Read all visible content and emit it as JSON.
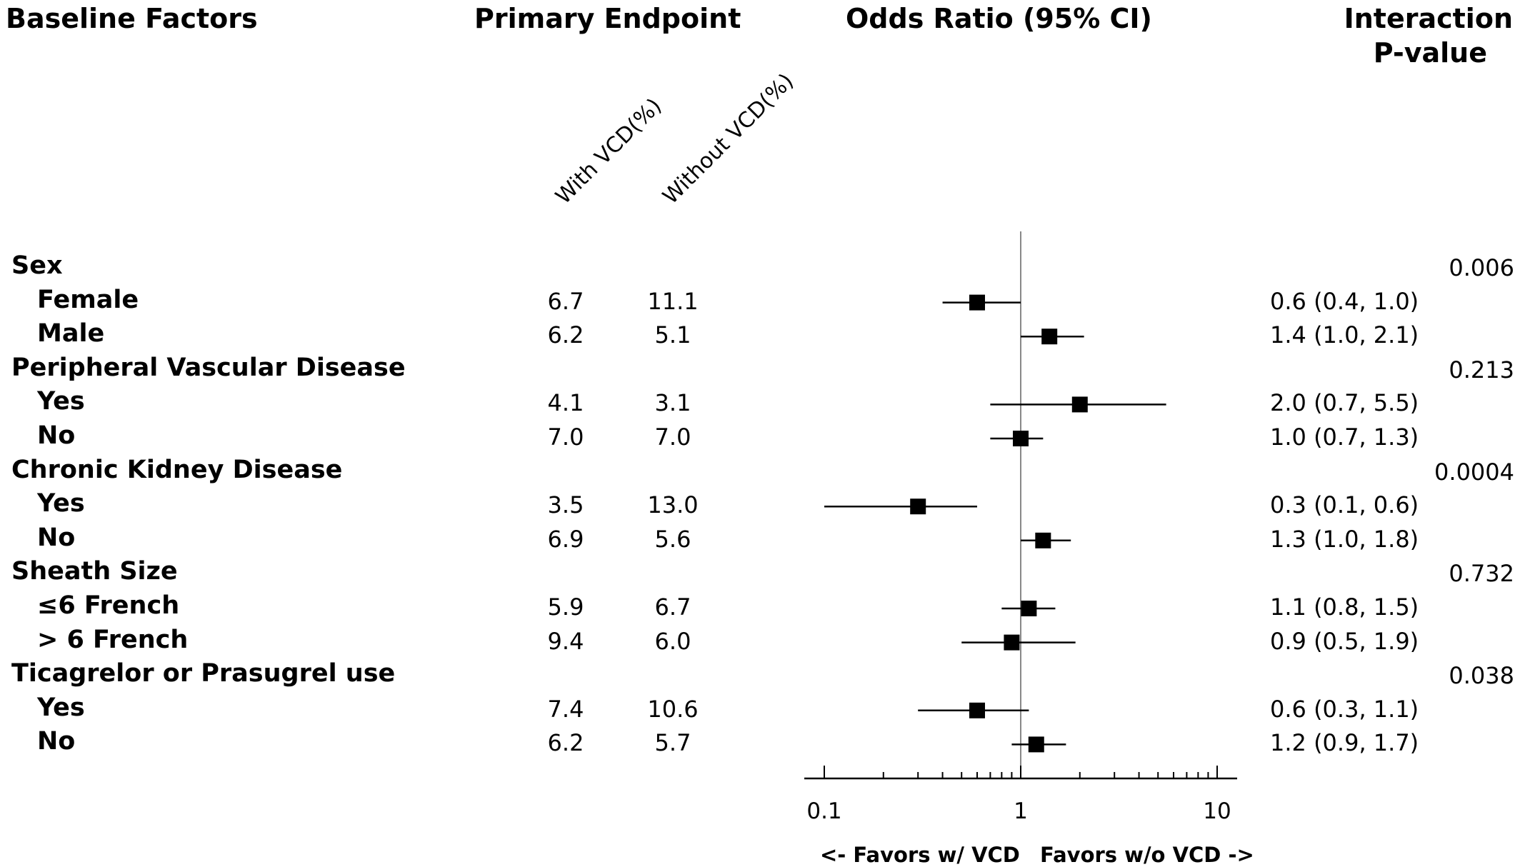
{
  "headers": {
    "baseline": "Baseline Factors",
    "endpoint": "Primary Endpoint",
    "or": "Odds Ratio (95% CI)",
    "interaction_line1": "Interaction",
    "interaction_line2": "P-value",
    "with_vcd": "With VCD(%)",
    "without_vcd": "Without VCD(%)"
  },
  "axis": {
    "favors_left": "<- Favors w/ VCD",
    "favors_right": "Favors w/o VCD ->"
  },
  "chart_data": {
    "type": "forest",
    "xscale": "log",
    "xlim": [
      0.1,
      10
    ],
    "xticks": [
      "0.1",
      "1",
      "10"
    ],
    "reference_line": 1,
    "groups": [
      {
        "label": "Sex",
        "pvalue": "0.006",
        "subgroups": [
          {
            "label": "Female",
            "with": "6.7",
            "without": "11.1",
            "or": 0.6,
            "lo": 0.4,
            "hi": 1.0,
            "ci_text": "0.6 (0.4, 1.0)"
          },
          {
            "label": "Male",
            "with": "6.2",
            "without": "5.1",
            "or": 1.4,
            "lo": 1.0,
            "hi": 2.1,
            "ci_text": "1.4 (1.0, 2.1)"
          }
        ]
      },
      {
        "label": "Peripheral Vascular Disease",
        "pvalue": "0.213",
        "subgroups": [
          {
            "label": "Yes",
            "with": "4.1",
            "without": "3.1",
            "or": 2.0,
            "lo": 0.7,
            "hi": 5.5,
            "ci_text": "2.0 (0.7, 5.5)"
          },
          {
            "label": "No",
            "with": "7.0",
            "without": "7.0",
            "or": 1.0,
            "lo": 0.7,
            "hi": 1.3,
            "ci_text": "1.0 (0.7, 1.3)"
          }
        ]
      },
      {
        "label": "Chronic Kidney Disease",
        "pvalue": "0.0004",
        "subgroups": [
          {
            "label": "Yes",
            "with": "3.5",
            "without": "13.0",
            "or": 0.3,
            "lo": 0.1,
            "hi": 0.6,
            "ci_text": "0.3 (0.1, 0.6)"
          },
          {
            "label": "No",
            "with": "6.9",
            "without": "5.6",
            "or": 1.3,
            "lo": 1.0,
            "hi": 1.8,
            "ci_text": "1.3 (1.0, 1.8)"
          }
        ]
      },
      {
        "label": "Sheath Size",
        "pvalue": "0.732",
        "subgroups": [
          {
            "label": "≤6 French",
            "with": "5.9",
            "without": "6.7",
            "or": 1.1,
            "lo": 0.8,
            "hi": 1.5,
            "ci_text": "1.1 (0.8, 1.5)"
          },
          {
            "label": "> 6 French",
            "with": "9.4",
            "without": "6.0",
            "or": 0.9,
            "lo": 0.5,
            "hi": 1.9,
            "ci_text": "0.9 (0.5, 1.9)"
          }
        ]
      },
      {
        "label": "Ticagrelor or Prasugrel use",
        "pvalue": "0.038",
        "subgroups": [
          {
            "label": "Yes",
            "with": "7.4",
            "without": "10.6",
            "or": 0.6,
            "lo": 0.3,
            "hi": 1.1,
            "ci_text": "0.6 (0.3, 1.1)"
          },
          {
            "label": "No",
            "with": "6.2",
            "without": "5.7",
            "or": 1.2,
            "lo": 0.9,
            "hi": 1.7,
            "ci_text": "1.2 (0.9, 1.7)"
          }
        ]
      }
    ]
  }
}
